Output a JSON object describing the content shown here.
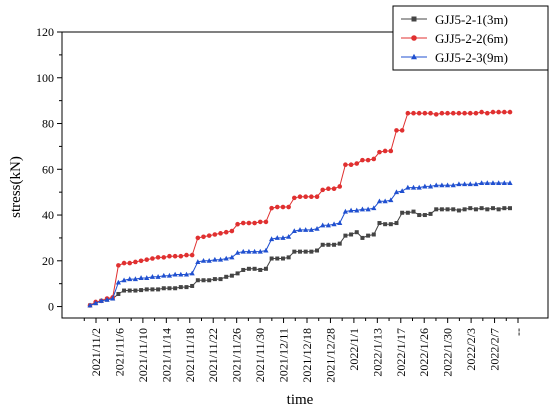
{
  "chart_data": {
    "type": "line",
    "title": "",
    "xlabel": "time",
    "ylabel": "stress(kN)",
    "ylim": [
      -5,
      120
    ],
    "yticks": [
      0,
      20,
      40,
      60,
      80,
      100,
      120
    ],
    "grid": false,
    "legend_position": "top-right",
    "x_tick_labels": [
      "2021/11/2",
      "2021/11/6",
      "2021/11/10",
      "2021/11/14",
      "2021/11/18",
      "2021/11/22",
      "2021/11/26",
      "2021/11/30",
      "2021/12/11",
      "2021/12/18",
      "2021/12/28",
      "2022/1/1",
      "2022/1/13",
      "2022/1/17",
      "2022/1/26",
      "2022/1/30",
      "2022/2/3",
      "2022/2/7"
    ],
    "x_tick_trailing": "--",
    "series": [
      {
        "name": "GJJ5-2-1(3m)",
        "color": "#444444",
        "marker": "square",
        "values": [
          0.5,
          1.5,
          2.5,
          3.0,
          3.5,
          5.5,
          7.0,
          7.0,
          7.0,
          7.2,
          7.5,
          7.5,
          7.5,
          8.0,
          8.0,
          8.0,
          8.5,
          8.5,
          9.0,
          11.5,
          11.5,
          11.5,
          12.0,
          12.0,
          13.0,
          13.5,
          14.5,
          16.0,
          16.5,
          16.5,
          16.0,
          16.5,
          21.0,
          21.0,
          21.0,
          21.5,
          24.0,
          24.0,
          24.0,
          24.0,
          24.5,
          27.0,
          27.0,
          27.0,
          27.5,
          31.0,
          31.5,
          32.5,
          30.0,
          31.0,
          31.5,
          36.5,
          36.0,
          36.0,
          36.5,
          41.0,
          41.0,
          41.5,
          40.0,
          40.0,
          40.5,
          42.5,
          42.5,
          42.5,
          42.5,
          42.0,
          42.5,
          43.0,
          42.5,
          43.0,
          42.5,
          43.0,
          42.5,
          43.0,
          43.0
        ]
      },
      {
        "name": "GJJ5-2-2(6m)",
        "color": "#e03030",
        "marker": "circle",
        "values": [
          0.5,
          2.0,
          2.5,
          3.5,
          4.0,
          18.0,
          19.0,
          19.0,
          19.5,
          20.0,
          20.5,
          21.0,
          21.5,
          21.5,
          22.0,
          22.0,
          22.0,
          22.5,
          22.5,
          30.0,
          30.5,
          31.0,
          31.5,
          32.0,
          32.5,
          33.0,
          36.0,
          36.5,
          36.5,
          36.5,
          37.0,
          37.0,
          43.0,
          43.5,
          43.5,
          43.5,
          47.5,
          48.0,
          48.0,
          48.0,
          48.0,
          51.0,
          51.5,
          51.5,
          52.5,
          62.0,
          62.0,
          62.5,
          64.0,
          64.0,
          64.5,
          67.5,
          68.0,
          68.0,
          77.0,
          77.0,
          84.5,
          84.5,
          84.5,
          84.5,
          84.5,
          84.0,
          84.5,
          84.5,
          84.5,
          84.5,
          84.5,
          84.5,
          84.5,
          85.0,
          84.5,
          85.0,
          85.0,
          85.0,
          85.0
        ]
      },
      {
        "name": "GJJ5-2-3(9m)",
        "color": "#2050d0",
        "marker": "triangle",
        "values": [
          0.5,
          1.5,
          2.5,
          3.0,
          3.5,
          10.5,
          11.5,
          12.0,
          12.0,
          12.5,
          12.5,
          13.0,
          13.0,
          13.5,
          13.5,
          14.0,
          14.0,
          14.0,
          14.5,
          19.5,
          20.0,
          20.0,
          20.5,
          20.5,
          21.0,
          21.5,
          23.5,
          24.0,
          24.0,
          24.0,
          24.0,
          24.5,
          29.5,
          30.0,
          30.0,
          30.5,
          33.0,
          33.5,
          33.5,
          33.5,
          34.0,
          35.5,
          35.5,
          36.0,
          36.5,
          41.5,
          42.0,
          42.0,
          42.5,
          42.5,
          43.0,
          46.0,
          46.0,
          46.5,
          50.0,
          50.5,
          52.0,
          52.0,
          52.0,
          52.5,
          52.5,
          53.0,
          53.0,
          53.0,
          53.0,
          53.5,
          53.5,
          53.5,
          53.5,
          54.0,
          54.0,
          54.0,
          54.0,
          54.0,
          54.0
        ]
      }
    ]
  }
}
